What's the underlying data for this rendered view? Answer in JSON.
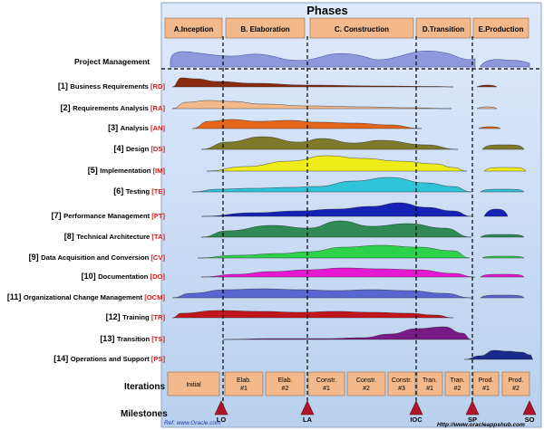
{
  "header": {
    "title": "Phases"
  },
  "phases": [
    "A.Inception",
    "B. Elaboration",
    "C. Construction",
    "D.Transition",
    "E.Production"
  ],
  "project_management": "Project Management",
  "disciplines": [
    {
      "num": "[1]",
      "name": "Business Requirements",
      "code": "[RD]",
      "color": "#8b2b0e"
    },
    {
      "num": "[2]",
      "name": "Requirements Analysis",
      "code": "[RA]",
      "color": "#f4b98a"
    },
    {
      "num": "[3]",
      "name": "Analysis",
      "code": "[AN]",
      "color": "#e4661a"
    },
    {
      "num": "[4]",
      "name": "Design",
      "code": "[DS]",
      "color": "#7f7a2a"
    },
    {
      "num": "[5]",
      "name": "Implementation",
      "code": "[IM]",
      "color": "#f0ec1a"
    },
    {
      "num": "[6]",
      "name": "Testing",
      "code": "[TE]",
      "color": "#2ec3d8"
    },
    {
      "num": "[7]",
      "name": "Performance Management",
      "code": "[PT]",
      "color": "#1522b5"
    },
    {
      "num": "[8]",
      "name": "Technical Architecture",
      "code": "[TA]",
      "color": "#2f8a55"
    },
    {
      "num": "[9]",
      "name": "Data Acquisition and Conversion",
      "code": "[CV]",
      "color": "#2ed24a"
    },
    {
      "num": "[10]",
      "name": "Documentation",
      "code": "[DO]",
      "color": "#e619d2"
    },
    {
      "num": "[11]",
      "name": "Organizational Change Management",
      "code": "[OCM]",
      "color": "#5a66cf"
    },
    {
      "num": "[12]",
      "name": "Training",
      "code": "[TR]",
      "color": "#c0161c"
    },
    {
      "num": "[13]",
      "name": "Transition",
      "code": "[TS]",
      "color": "#7a1a86"
    },
    {
      "num": "[14]",
      "name": "Operations and Support",
      "code": "[PS]",
      "color": "#1a2a8a"
    }
  ],
  "iterations_label": "Iterations",
  "iterations": [
    [
      "Initial"
    ],
    [
      "Elab.",
      "#1"
    ],
    [
      "Elab.",
      "#2"
    ],
    [
      "Constr.",
      "#1"
    ],
    [
      "Constr.",
      "#2"
    ],
    [
      "Constr.",
      "#3"
    ],
    [
      "Tran.",
      "#1"
    ],
    [
      "Tran.",
      "#2"
    ],
    [
      "Prod.",
      "#1"
    ],
    [
      "Prod.",
      "#2"
    ]
  ],
  "milestones_label": "Milestones",
  "milestones": [
    "LO",
    "LA",
    "IOC",
    "SP",
    "SO"
  ],
  "credits": {
    "left": "Ref: www.Oracle.com",
    "right": "Http://www.oracleappshub.com"
  },
  "colors": {
    "panel": "#c9dcf3",
    "phase_box": "#f3b98a",
    "milestone": "#b1142a",
    "code_red": "#d41c1c",
    "pm_fill": "#8e99dc"
  }
}
